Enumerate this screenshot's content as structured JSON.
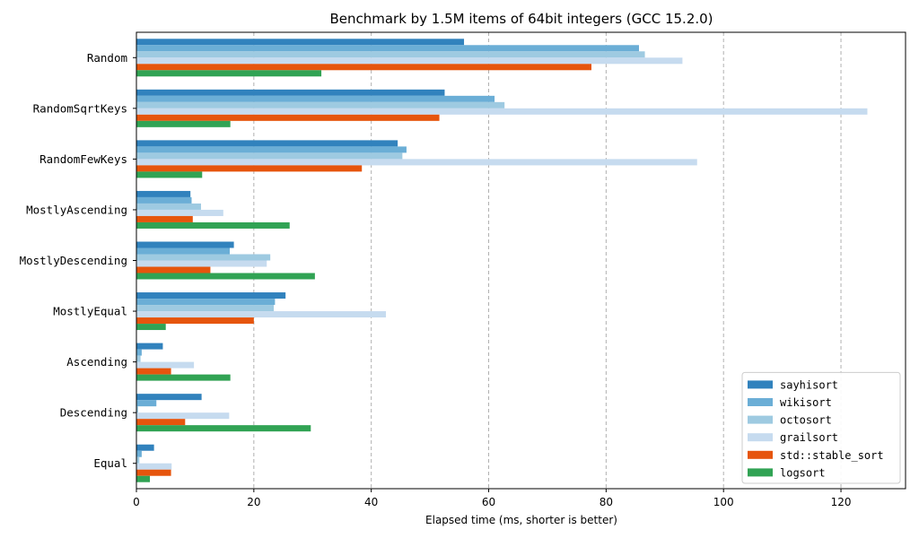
{
  "chart_data": {
    "type": "bar",
    "orientation": "horizontal",
    "title": "Benchmark by 1.5M items of 64bit integers (GCC 15.2.0)",
    "xlabel": "Elapsed time (ms, shorter is better)",
    "ylabel": "",
    "xlim": [
      0,
      131
    ],
    "xticks": [
      0,
      20,
      40,
      60,
      80,
      100,
      120
    ],
    "grid": "x-dashed",
    "legend_position": "bottom-right",
    "categories": [
      "Random",
      "RandomSqrtKeys",
      "RandomFewKeys",
      "MostlyAscending",
      "MostlyDescending",
      "MostlyEqual",
      "Ascending",
      "Descending",
      "Equal"
    ],
    "series": [
      {
        "name": "sayhisort",
        "color": "#3182bd",
        "values": [
          55.8,
          52.5,
          44.5,
          9.2,
          16.6,
          25.4,
          4.5,
          11.1,
          3.0
        ]
      },
      {
        "name": "wikisort",
        "color": "#6baed6",
        "values": [
          85.6,
          61.0,
          46.0,
          9.4,
          15.9,
          23.6,
          0.9,
          3.4,
          0.9
        ]
      },
      {
        "name": "octosort",
        "color": "#9ecae1",
        "values": [
          86.6,
          62.7,
          45.3,
          11.0,
          22.8,
          23.4,
          0.7,
          0.3,
          0.5
        ]
      },
      {
        "name": "grailsort",
        "color": "#c6dbef",
        "values": [
          93.0,
          124.5,
          95.5,
          14.8,
          22.2,
          42.5,
          9.8,
          15.8,
          6.0
        ]
      },
      {
        "name": "std::stable_sort",
        "color": "#e6550d",
        "values": [
          77.5,
          51.6,
          38.4,
          9.6,
          12.6,
          20.0,
          5.9,
          8.3,
          5.9
        ]
      },
      {
        "name": "logsort",
        "color": "#31a354",
        "values": [
          31.5,
          16.0,
          11.2,
          26.1,
          30.4,
          5.0,
          16.0,
          29.7,
          2.3
        ]
      }
    ]
  }
}
